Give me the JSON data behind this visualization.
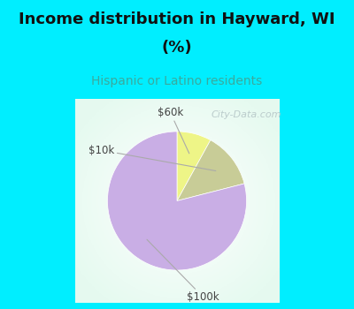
{
  "title_line1": "Income distribution in Hayward, WI",
  "title_line2": "(%)",
  "subtitle": "Hispanic or Latino residents",
  "slices": [
    {
      "label": "$60k",
      "value": 8,
      "color": "#eef587"
    },
    {
      "label": "$10k",
      "value": 13,
      "color": "#c8cc97"
    },
    {
      "label": "$100k",
      "value": 79,
      "color": "#c9aee5"
    }
  ],
  "title_fontsize": 13,
  "subtitle_fontsize": 10,
  "subtitle_color": "#3aaa9e",
  "title_color": "#111111",
  "cyan_color": "#00eeff",
  "label_fontsize": 8.5,
  "label_color": "#444444",
  "start_angle": 90,
  "watermark_text": "City-Data.com",
  "watermark_color": "#bbcccc",
  "watermark_fontsize": 8
}
